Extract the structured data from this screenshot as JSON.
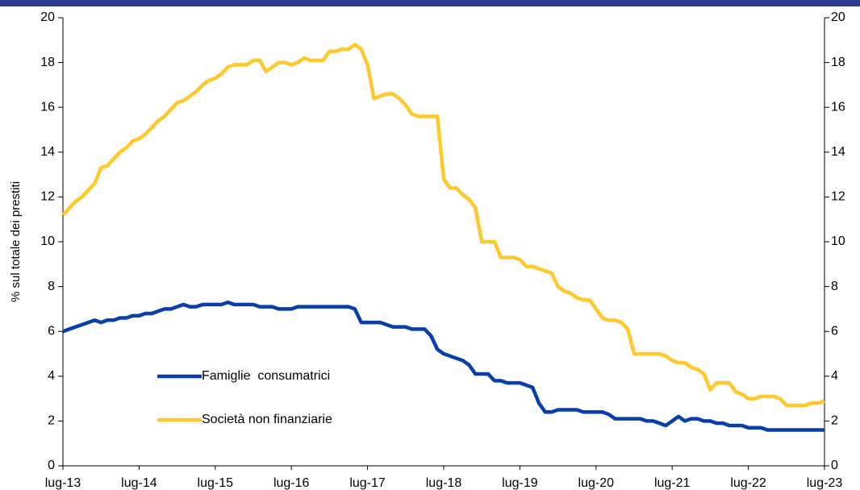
{
  "chart_data": {
    "type": "line",
    "y_label": "% sul totale dei prestiti",
    "categories": [
      "lug-13",
      null,
      null,
      null,
      null,
      null,
      null,
      null,
      null,
      null,
      null,
      null,
      "lug-14",
      null,
      null,
      null,
      null,
      null,
      null,
      null,
      null,
      null,
      null,
      null,
      "lug-15",
      null,
      null,
      null,
      null,
      null,
      null,
      null,
      null,
      null,
      null,
      null,
      "lug-16",
      null,
      null,
      null,
      null,
      null,
      null,
      null,
      null,
      null,
      null,
      null,
      "lug-17",
      null,
      null,
      null,
      null,
      null,
      null,
      null,
      null,
      null,
      null,
      null,
      "lug-18",
      null,
      null,
      null,
      null,
      null,
      null,
      null,
      null,
      null,
      null,
      null,
      "lug-19",
      null,
      null,
      null,
      null,
      null,
      null,
      null,
      null,
      null,
      null,
      null,
      "lug-20",
      null,
      null,
      null,
      null,
      null,
      null,
      null,
      null,
      null,
      null,
      null,
      "lug-21",
      null,
      null,
      null,
      null,
      null,
      null,
      null,
      null,
      null,
      null,
      null,
      "lug-22",
      null,
      null,
      null,
      null,
      null,
      null,
      null,
      null,
      null,
      null,
      null,
      "lug-23"
    ],
    "series": [
      {
        "name": "Famiglie  consumatrici",
        "color": "#0a3ea8",
        "values": [
          6.0,
          6.1,
          6.2,
          6.3,
          6.4,
          6.5,
          6.4,
          6.5,
          6.5,
          6.6,
          6.6,
          6.7,
          6.7,
          6.8,
          6.8,
          6.9,
          7.0,
          7.0,
          7.1,
          7.2,
          7.1,
          7.1,
          7.2,
          7.2,
          7.2,
          7.2,
          7.3,
          7.2,
          7.2,
          7.2,
          7.2,
          7.1,
          7.1,
          7.1,
          7.0,
          7.0,
          7.0,
          7.1,
          7.1,
          7.1,
          7.1,
          7.1,
          7.1,
          7.1,
          7.1,
          7.1,
          7.0,
          6.4,
          6.4,
          6.4,
          6.4,
          6.3,
          6.2,
          6.2,
          6.2,
          6.1,
          6.1,
          6.1,
          5.8,
          5.2,
          5.0,
          4.9,
          4.8,
          4.7,
          4.5,
          4.1,
          4.1,
          4.1,
          3.8,
          3.8,
          3.7,
          3.7,
          3.7,
          3.6,
          3.5,
          2.8,
          2.4,
          2.4,
          2.5,
          2.5,
          2.5,
          2.5,
          2.4,
          2.4,
          2.4,
          2.4,
          2.3,
          2.1,
          2.1,
          2.1,
          2.1,
          2.1,
          2.0,
          2.0,
          1.9,
          1.8,
          2.0,
          2.2,
          2.0,
          2.1,
          2.1,
          2.0,
          2.0,
          1.9,
          1.9,
          1.8,
          1.8,
          1.8,
          1.7,
          1.7,
          1.7,
          1.6,
          1.6,
          1.6,
          1.6,
          1.6,
          1.6,
          1.6,
          1.6,
          1.6,
          1.6
        ]
      },
      {
        "name": "Società non finanziarie",
        "color": "#ffc82d",
        "values": [
          11.2,
          11.5,
          11.8,
          12.0,
          12.3,
          12.6,
          13.3,
          13.4,
          13.7,
          14.0,
          14.2,
          14.5,
          14.6,
          14.8,
          15.1,
          15.4,
          15.6,
          15.9,
          16.2,
          16.3,
          16.5,
          16.7,
          17.0,
          17.2,
          17.3,
          17.5,
          17.8,
          17.9,
          17.9,
          17.9,
          18.1,
          18.1,
          17.6,
          17.8,
          18.0,
          18.0,
          17.9,
          18.0,
          18.2,
          18.1,
          18.1,
          18.1,
          18.5,
          18.5,
          18.6,
          18.6,
          18.8,
          18.6,
          17.9,
          16.4,
          16.5,
          16.6,
          16.6,
          16.4,
          16.1,
          15.7,
          15.6,
          15.6,
          15.6,
          15.6,
          12.8,
          12.4,
          12.4,
          12.1,
          11.9,
          11.5,
          10.0,
          10.0,
          10.0,
          9.3,
          9.3,
          9.3,
          9.2,
          8.9,
          8.9,
          8.8,
          8.7,
          8.6,
          8.0,
          7.8,
          7.7,
          7.5,
          7.4,
          7.4,
          7.0,
          6.6,
          6.5,
          6.5,
          6.4,
          6.1,
          5.0,
          5.0,
          5.0,
          5.0,
          5.0,
          4.9,
          4.7,
          4.6,
          4.6,
          4.4,
          4.3,
          4.1,
          3.4,
          3.7,
          3.7,
          3.7,
          3.3,
          3.2,
          3.0,
          3.0,
          3.1,
          3.1,
          3.1,
          3.0,
          2.7,
          2.7,
          2.7,
          2.7,
          2.8,
          2.8,
          2.9
        ]
      }
    ],
    "ylim": [
      0,
      20
    ],
    "yticks": [
      0,
      2,
      4,
      6,
      8,
      10,
      12,
      14,
      16,
      18,
      20
    ],
    "y2lim": [
      0,
      20
    ],
    "y2ticks": [
      0,
      2,
      4,
      6,
      8,
      10,
      12,
      14,
      16,
      18,
      20
    ],
    "grid": false,
    "legend": "lower left"
  }
}
